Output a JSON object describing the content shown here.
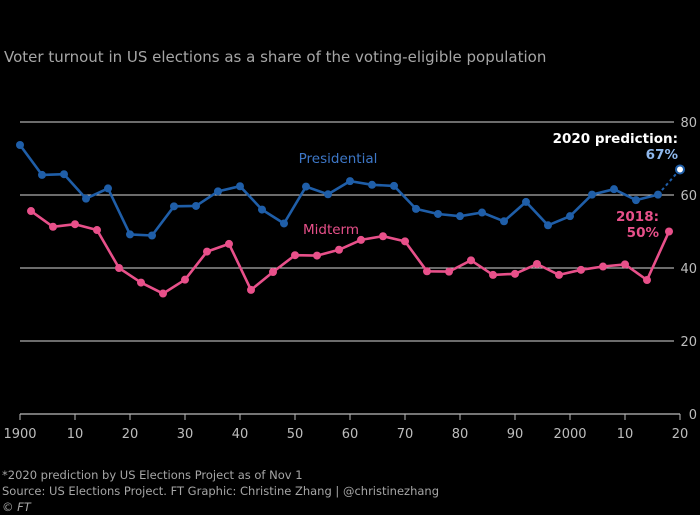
{
  "subtitle": "Voter turnout in US elections as a share of the voting-eligible population",
  "footnote": "*2020 prediction by US Elections Project as of Nov 1",
  "source": "Source: US Elections Project. FT Graphic: Christine Zhang | @christinezhang",
  "copyright": "© FT",
  "chart_data": {
    "type": "line",
    "x_range": [
      1900,
      2020
    ],
    "ylim": [
      0,
      80
    ],
    "grid": true,
    "x_ticks": [
      1900,
      1910,
      1920,
      1930,
      1940,
      1950,
      1960,
      1970,
      1980,
      1990,
      2000,
      2010,
      2020
    ],
    "x_tick_labels": [
      "1900",
      "10",
      "20",
      "30",
      "40",
      "50",
      "60",
      "70",
      "80",
      "90",
      "2000",
      "10",
      "20"
    ],
    "y_ticks": [
      0,
      20,
      40,
      60,
      80
    ],
    "y_tick_labels": [
      "0",
      "20",
      "40",
      "60",
      "80"
    ],
    "colors": {
      "presidential": "#1f5ea8",
      "midterm": "#e8508a",
      "grid": "#ffffff",
      "axis": "#bbbbbb"
    },
    "series": [
      {
        "name": "Presidential",
        "x": [
          1900,
          1904,
          1908,
          1912,
          1916,
          1920,
          1924,
          1928,
          1932,
          1936,
          1940,
          1944,
          1948,
          1952,
          1956,
          1960,
          1964,
          1968,
          1972,
          1976,
          1980,
          1984,
          1988,
          1992,
          1996,
          2000,
          2004,
          2008,
          2012,
          2016
        ],
        "values": [
          73.7,
          65.5,
          65.7,
          59.0,
          61.8,
          49.2,
          48.9,
          56.9,
          57.0,
          61.0,
          62.4,
          56.0,
          52.2,
          62.3,
          60.2,
          63.8,
          62.8,
          62.5,
          56.2,
          54.8,
          54.2,
          55.2,
          52.8,
          58.1,
          51.7,
          54.2,
          60.1,
          61.6,
          58.6,
          60.1
        ]
      },
      {
        "name": "Midterm",
        "x": [
          1902,
          1906,
          1910,
          1914,
          1918,
          1922,
          1926,
          1930,
          1934,
          1938,
          1942,
          1946,
          1950,
          1954,
          1958,
          1962,
          1966,
          1970,
          1974,
          1978,
          1982,
          1986,
          1990,
          1994,
          1998,
          2002,
          2006,
          2010,
          2014,
          2018
        ],
        "values": [
          55.6,
          51.3,
          52.0,
          50.4,
          40.0,
          36.0,
          33.0,
          36.8,
          44.5,
          46.6,
          34.0,
          38.9,
          43.5,
          43.4,
          45.0,
          47.7,
          48.7,
          47.3,
          39.1,
          39.0,
          42.1,
          38.1,
          38.4,
          41.1,
          38.1,
          39.5,
          40.4,
          41.0,
          36.7,
          50.0
        ]
      }
    ],
    "prediction": {
      "x": 2020,
      "value": 67,
      "from_x": 2016,
      "from_value": 60.1
    },
    "annotations": {
      "presidential_label": "Presidential",
      "midterm_label": "Midterm",
      "pred_line1": "2020 prediction:",
      "pred_line2": "67%",
      "midterm2018_line1": "2018:",
      "midterm2018_line2": "50%"
    }
  }
}
